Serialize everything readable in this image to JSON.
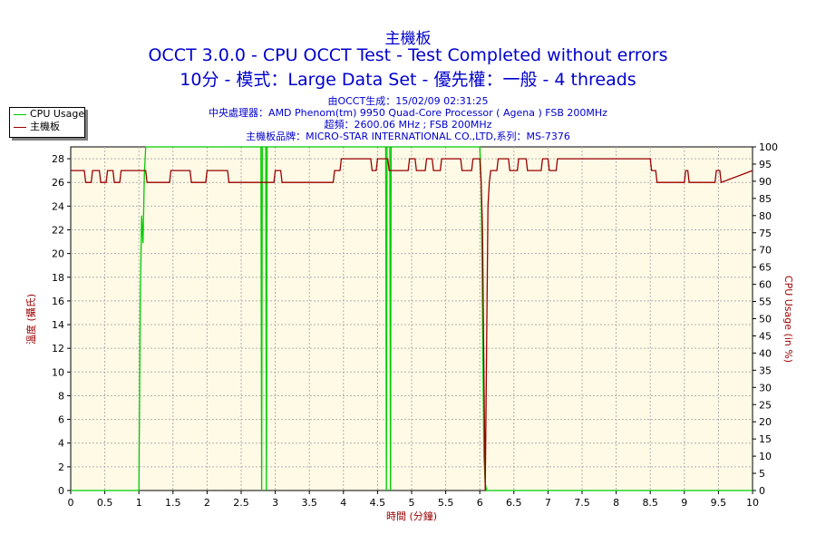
{
  "header": {
    "title": "主機板",
    "subtitle1": "OCCT 3.0.0 - CPU OCCT Test - Test Completed without errors",
    "subtitle2": "10分 - 模式：Large Data Set - 優先權：一般 - 4 threads",
    "info1": "由OCCT生成：15/02/09 02:31:25",
    "info2": "中央處理器：AMD Phenom(tm) 9950 Quad-Core Processor ( Agena ) FSB 200MHz",
    "info3": "超頻：2600.06 MHz ; FSB 200MHz",
    "info4": "主機板品牌：MICRO-STAR INTERNATIONAL CO.,LTD,系列：MS-7376"
  },
  "chart_data": {
    "type": "line",
    "xlabel": "時間 (分鐘)",
    "ylabel_left": "溫度 (攝氏)",
    "ylabel_right": "CPU Usage (in %)",
    "xlim": [
      0,
      10
    ],
    "ylim_left": [
      0,
      29
    ],
    "ylim_right": [
      0,
      100
    ],
    "x_ticks": [
      "0",
      "0.5",
      "1",
      "1.5",
      "2",
      "2.5",
      "3",
      "3.5",
      "4",
      "4.5",
      "5",
      "5.5",
      "6",
      "6.5",
      "7",
      "7.5",
      "8",
      "8.5",
      "9",
      "9.5",
      "10"
    ],
    "y_left_ticks": [
      "0",
      "2",
      "4",
      "6",
      "8",
      "10",
      "12",
      "14",
      "16",
      "18",
      "20",
      "22",
      "24",
      "26",
      "28"
    ],
    "y_right_ticks": [
      "0",
      "5",
      "10",
      "15",
      "20",
      "25",
      "30",
      "35",
      "40",
      "45",
      "50",
      "55",
      "60",
      "65",
      "70",
      "75",
      "80",
      "85",
      "90",
      "95",
      "100"
    ],
    "grid": true,
    "legend_position": "top-left",
    "series": [
      {
        "name": "CPU Usage",
        "axis": "right",
        "color": "#00cc00",
        "x": [
          0,
          1.0,
          1.02,
          1.04,
          1.06,
          1.07,
          1.08,
          1.09,
          1.1,
          1.12,
          1.15,
          1.2,
          1.5,
          2.0,
          2.5,
          2.79,
          2.8,
          2.81,
          2.86,
          2.87,
          2.88,
          3.0,
          3.5,
          4.0,
          4.5,
          4.62,
          4.63,
          4.64,
          4.68,
          4.69,
          4.7,
          5.0,
          5.5,
          6.0,
          6.02,
          6.04,
          6.06,
          6.08,
          6.1,
          10
        ],
        "y": [
          0,
          0,
          55,
          80,
          72,
          82,
          92,
          96,
          100,
          100,
          100,
          100,
          100,
          100,
          100,
          100,
          0,
          100,
          100,
          0,
          100,
          100,
          100,
          100,
          100,
          100,
          0,
          100,
          100,
          0,
          100,
          100,
          100,
          100,
          90,
          50,
          10,
          2,
          0,
          0
        ]
      },
      {
        "name": "主機板",
        "axis": "left",
        "color": "#990000",
        "x": [
          0,
          0.2,
          0.22,
          0.3,
          0.32,
          0.42,
          0.44,
          0.52,
          0.54,
          0.62,
          0.64,
          0.72,
          0.74,
          1.1,
          1.12,
          1.45,
          1.47,
          1.75,
          1.77,
          1.98,
          2.0,
          2.3,
          2.32,
          2.98,
          3.0,
          3.08,
          3.1,
          3.85,
          3.87,
          3.95,
          3.97,
          4.4,
          4.42,
          4.48,
          4.5,
          4.65,
          4.67,
          4.95,
          4.97,
          5.05,
          5.07,
          5.2,
          5.22,
          5.3,
          5.32,
          5.42,
          5.44,
          5.72,
          5.74,
          5.88,
          5.9,
          6.0,
          6.02,
          6.04,
          6.06,
          6.08,
          6.1,
          6.12,
          6.14,
          6.16,
          6.2,
          6.25,
          6.27,
          6.42,
          6.44,
          6.55,
          6.57,
          6.68,
          6.7,
          6.9,
          6.92,
          7.0,
          7.02,
          7.12,
          7.14,
          8.5,
          8.52,
          8.58,
          8.6,
          9.0,
          9.02,
          9.05,
          9.07,
          9.45,
          9.47,
          9.52,
          9.54,
          10
        ],
        "y": [
          27,
          27,
          26,
          26,
          27,
          27,
          26,
          26,
          27,
          27,
          26,
          26,
          27,
          27,
          26,
          26,
          27,
          27,
          26,
          26,
          27,
          27,
          26,
          26,
          27,
          27,
          26,
          26,
          27,
          27,
          28,
          28,
          27,
          27,
          28,
          28,
          27,
          27,
          28,
          28,
          27,
          27,
          28,
          28,
          27,
          27,
          28,
          28,
          27,
          27,
          28,
          28,
          26,
          22,
          10,
          0,
          12,
          24,
          26,
          27,
          27,
          27,
          28,
          28,
          27,
          27,
          28,
          28,
          27,
          27,
          28,
          28,
          27,
          27,
          28,
          28,
          27,
          27,
          26,
          26,
          27,
          27,
          26,
          26,
          27,
          27,
          26,
          27
        ]
      }
    ]
  }
}
